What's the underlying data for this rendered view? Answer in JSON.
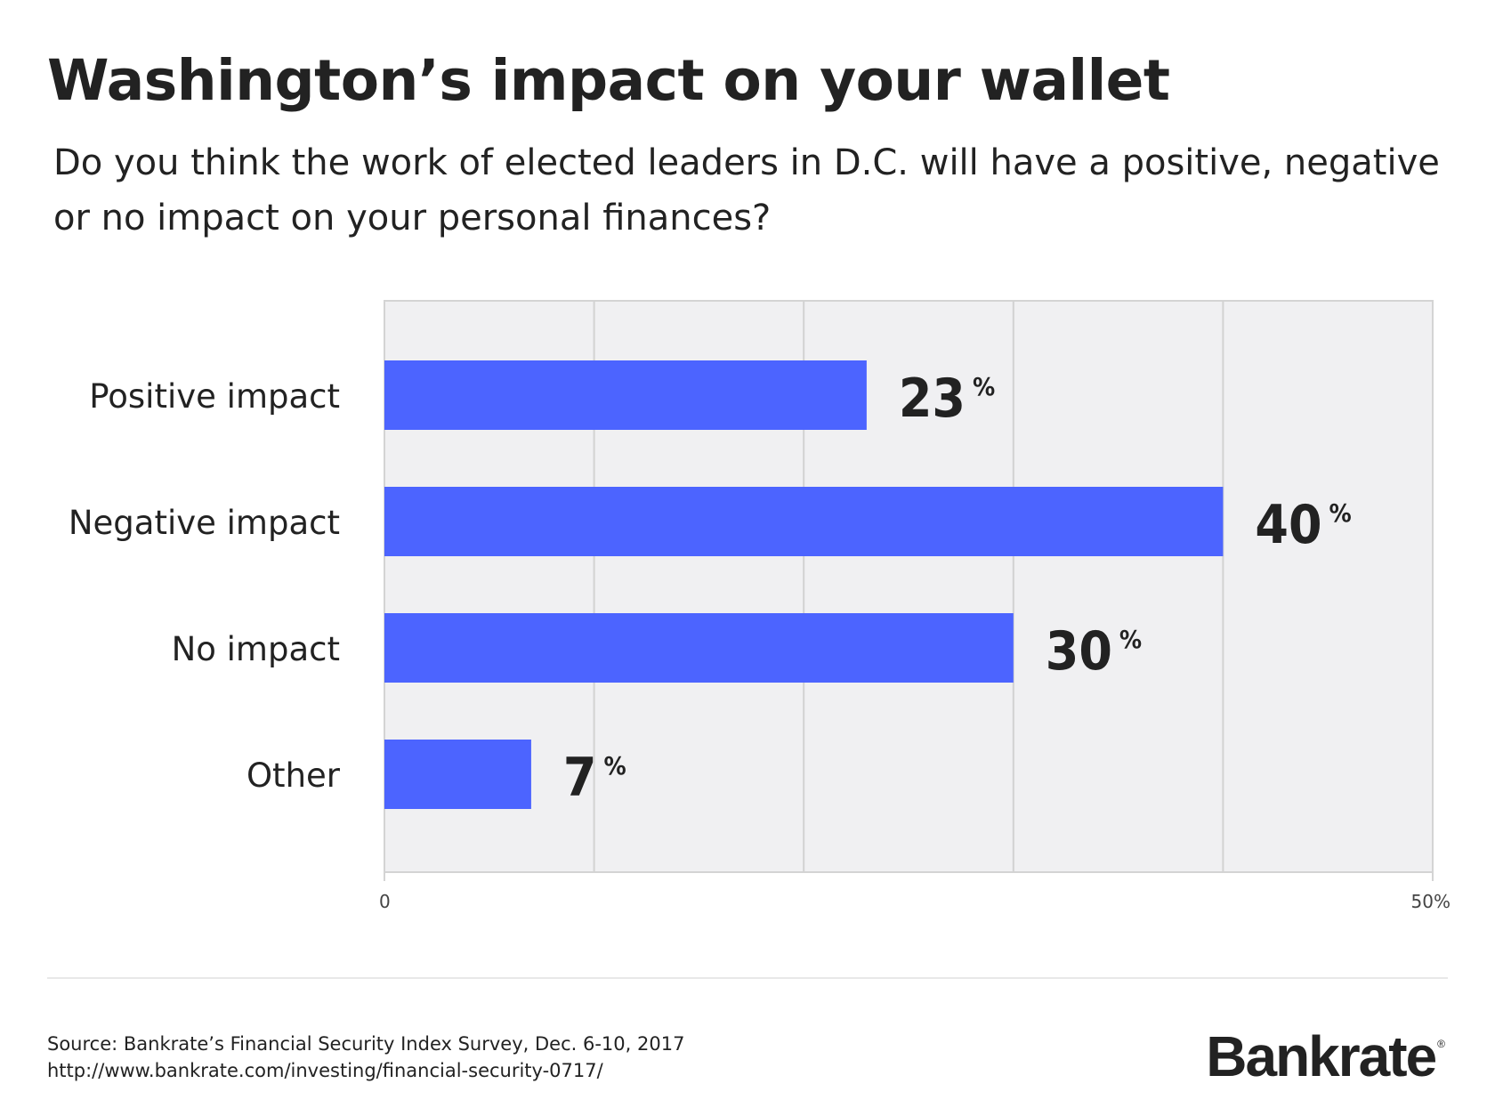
{
  "header": {
    "title": "Washington’s impact on your wallet",
    "subtitle": "Do you think the work of elected leaders in D.C. will have a positive, negative or no impact on your personal finances?"
  },
  "chart_data": {
    "type": "bar",
    "orientation": "horizontal",
    "categories": [
      "Positive impact",
      "Negative impact",
      "No impact",
      "Other"
    ],
    "values": [
      23,
      40,
      30,
      7
    ],
    "value_suffix": "%",
    "xlim": [
      0,
      50
    ],
    "x_tick_labels": [
      "0",
      "50%"
    ],
    "grid": true,
    "bar_color": "#4c64ff",
    "plot_background": "#f0f0f2"
  },
  "footer": {
    "source_line": "Source: Bankrate’s Financial Security Index Survey,  Dec. 6-10, 2017",
    "url_line": "http://www.bankrate.com/investing/financial-security-0717/",
    "logo_text": "Bankrate",
    "logo_mark": "®"
  }
}
